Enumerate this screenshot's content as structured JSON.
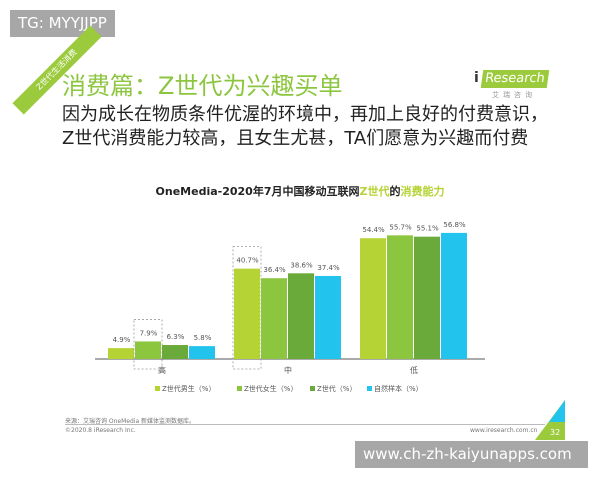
{
  "watermark_top": "TG: MYYJJPP",
  "watermark_bottom": "www.ch-zh-kaiyunapps.com",
  "slide": {
    "corner_label": "Z世代生活消费",
    "title": "消费篇：Z世代为兴趣买单",
    "subtitle_line1": "因为成长在物质条件优渥的环境中，再加上良好的付费意识，",
    "subtitle_line2": "Z世代消费能力较高，且女生尤甚，TA们愿意为兴趣而付费",
    "logo_text": "Research",
    "logo_i": "i",
    "logo_cn": "艾瑞咨询",
    "source": "来源：艾瑞咨询 OneMedia 新媒体监测数据库。",
    "copyright": "©2020.8 iResearch Inc.",
    "website": "www.iresearch.com.cn",
    "page_number": "32"
  },
  "chart_data": {
    "type": "bar",
    "title_prefix": "OneMedia-2020年7月中国移动互联网",
    "title_highlight1": "Z世代",
    "title_mid": "的",
    "title_highlight2": "消费能力",
    "categories": [
      "高",
      "中",
      "低"
    ],
    "series": [
      {
        "name": "Z世代男生（%）",
        "color": "#b5d334",
        "values": [
          4.9,
          40.7,
          54.4
        ],
        "labels": [
          "4.9%",
          "40.7%",
          "54.4%"
        ]
      },
      {
        "name": "Z世代女生（%）",
        "color": "#8cc63f",
        "values": [
          7.9,
          36.4,
          55.7
        ],
        "labels": [
          "7.9%",
          "36.4%",
          "55.7%"
        ]
      },
      {
        "name": "Z世代（%）",
        "color": "#6aaa3a",
        "values": [
          6.3,
          38.6,
          55.1
        ],
        "labels": [
          "6.3%",
          "38.6%",
          "55.1%"
        ]
      },
      {
        "name": "自然样本（%）",
        "color": "#22c4ee",
        "values": [
          5.8,
          37.4,
          56.8
        ],
        "labels": [
          "5.8%",
          "37.4%",
          "56.8%"
        ]
      }
    ],
    "highlighted": [
      {
        "category": "高",
        "series": "Z世代女生（%）"
      },
      {
        "category": "中",
        "series": "Z世代男生（%）"
      }
    ],
    "ylim": [
      0,
      60
    ],
    "legend": "bottom"
  }
}
